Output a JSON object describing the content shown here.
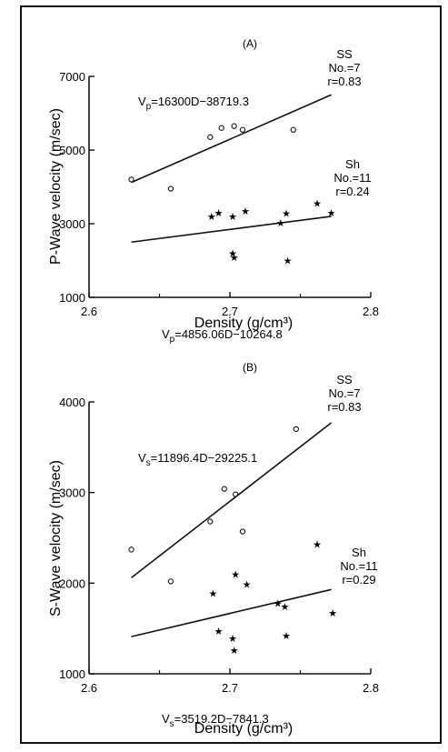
{
  "chart_data": [
    {
      "type": "scatter",
      "panel_label": "(A)",
      "xlabel": "Density (g/cm³)",
      "ylabel": "P-Wave velocity (m/sec)",
      "xlim": [
        2.6,
        2.8
      ],
      "ylim": [
        1000,
        7000
      ],
      "xticks": [
        "2.6",
        "2.7",
        "2.8"
      ],
      "yticks": [
        "1000",
        "3000",
        "5000",
        "7000"
      ],
      "grid": false,
      "series": [
        {
          "marker": "circle",
          "points": [
            [
              2.63,
              4200
            ],
            [
              2.658,
              3950
            ],
            [
              2.686,
              5350
            ],
            [
              2.694,
              5600
            ],
            [
              2.703,
              5650
            ],
            [
              2.709,
              5550
            ],
            [
              2.745,
              5550
            ]
          ],
          "fit": {
            "x": [
              2.63,
              2.772
            ],
            "y": [
              4120,
              6500
            ]
          },
          "annotation": {
            "group": "SS",
            "n": "No.=7",
            "r": "r=0.83"
          }
        },
        {
          "marker": "star",
          "points": [
            [
              2.687,
              3200
            ],
            [
              2.692,
              3300
            ],
            [
              2.702,
              3200
            ],
            [
              2.711,
              3350
            ],
            [
              2.736,
              3020
            ],
            [
              2.74,
              3280
            ],
            [
              2.762,
              3550
            ],
            [
              2.772,
              3300
            ],
            [
              2.702,
              2200
            ],
            [
              2.703,
              2090
            ],
            [
              2.741,
              2000
            ]
          ],
          "fit": {
            "x": [
              2.63,
              2.772
            ],
            "y": [
              2500,
              3200
            ]
          },
          "annotation": {
            "group": "Sh",
            "n": "No.=11",
            "r": "r=0.24"
          }
        }
      ],
      "equations": {
        "top": {
          "lhs": "V",
          "sub": "p",
          "rhs": "=16300D−38719.3"
        },
        "bottom": {
          "lhs": "V",
          "sub": "p",
          "rhs": "=4856.06D−10264.8"
        }
      }
    },
    {
      "type": "scatter",
      "panel_label": "(B)",
      "xlabel": "Density (g/cm³)",
      "ylabel": "S-Wave velocity (m/sec)",
      "xlim": [
        2.6,
        2.8
      ],
      "ylim": [
        1000,
        4000
      ],
      "xticks": [
        "2.6",
        "2.7",
        "2.8"
      ],
      "yticks": [
        "1000",
        "2000",
        "3000",
        "4000"
      ],
      "grid": false,
      "series": [
        {
          "marker": "circle",
          "points": [
            [
              2.63,
              2370
            ],
            [
              2.658,
              2020
            ],
            [
              2.686,
              2680
            ],
            [
              2.696,
              3040
            ],
            [
              2.704,
              2980
            ],
            [
              2.709,
              2570
            ],
            [
              2.747,
              3700
            ]
          ],
          "fit": {
            "x": [
              2.63,
              2.772
            ],
            "y": [
              2060,
              3770
            ]
          },
          "annotation": {
            "group": "SS",
            "n": "No.=7",
            "r": "r=0.83"
          }
        },
        {
          "marker": "star",
          "points": [
            [
              2.688,
              1890
            ],
            [
              2.704,
              2100
            ],
            [
              2.712,
              1990
            ],
            [
              2.734,
              1780
            ],
            [
              2.739,
              1740
            ],
            [
              2.762,
              2430
            ],
            [
              2.773,
              1670
            ],
            [
              2.692,
              1470
            ],
            [
              2.702,
              1390
            ],
            [
              2.703,
              1260
            ],
            [
              2.74,
              1420
            ]
          ],
          "fit": {
            "x": [
              2.63,
              2.772
            ],
            "y": [
              1410,
              1930
            ]
          },
          "annotation": {
            "group": "Sh",
            "n": "No.=11",
            "r": "r=0.29"
          }
        }
      ],
      "equations": {
        "top": {
          "lhs": "V",
          "sub": "s",
          "rhs": "=11896.4D−29225.1"
        },
        "bottom": {
          "lhs": "V",
          "sub": "s",
          "rhs": "=3519.2D−7841.3"
        }
      }
    }
  ]
}
